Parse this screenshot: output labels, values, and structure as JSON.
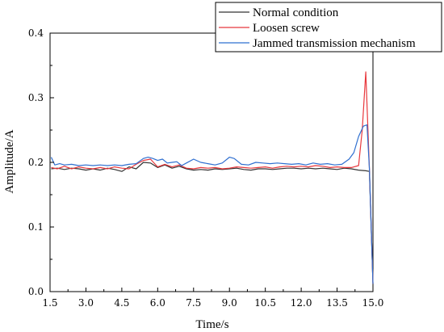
{
  "chart_data": {
    "type": "line",
    "xlabel": "Time/s",
    "ylabel": "Amplitude/A",
    "xlim": [
      1.5,
      15.0
    ],
    "ylim": [
      0.0,
      0.4
    ],
    "xticks": [
      "1.5",
      "3.0",
      "4.5",
      "6.0",
      "7.5",
      "9.0",
      "10.5",
      "12.0",
      "13.5",
      "15.0"
    ],
    "yticks": [
      "0.0",
      "0.1",
      "0.2",
      "0.3",
      "0.4"
    ],
    "xtick_values": [
      1.5,
      3.0,
      4.5,
      6.0,
      7.5,
      9.0,
      10.5,
      12.0,
      13.5,
      15.0
    ],
    "ytick_values": [
      0.0,
      0.1,
      0.2,
      0.3,
      0.4
    ],
    "grid": false,
    "legend_position": "top-right",
    "series": [
      {
        "name": "Normal condition",
        "color": "#333333",
        "x": [
          1.55,
          1.8,
          2.1,
          2.4,
          2.7,
          3.0,
          3.3,
          3.6,
          3.9,
          4.2,
          4.5,
          4.8,
          5.1,
          5.4,
          5.7,
          6.0,
          6.3,
          6.6,
          6.9,
          7.2,
          7.5,
          7.8,
          8.1,
          8.4,
          8.7,
          9.0,
          9.3,
          9.6,
          9.9,
          10.2,
          10.5,
          10.8,
          11.1,
          11.4,
          11.7,
          12.0,
          12.3,
          12.6,
          12.9,
          13.2,
          13.5,
          13.8,
          14.1,
          14.4,
          14.7,
          14.85,
          15.0
        ],
        "y": [
          0.19,
          0.191,
          0.189,
          0.191,
          0.19,
          0.188,
          0.19,
          0.188,
          0.191,
          0.189,
          0.186,
          0.193,
          0.19,
          0.2,
          0.199,
          0.192,
          0.196,
          0.191,
          0.194,
          0.19,
          0.188,
          0.189,
          0.188,
          0.19,
          0.189,
          0.19,
          0.191,
          0.189,
          0.188,
          0.19,
          0.19,
          0.189,
          0.19,
          0.191,
          0.191,
          0.19,
          0.191,
          0.19,
          0.191,
          0.19,
          0.189,
          0.191,
          0.19,
          0.188,
          0.187,
          0.186,
          0.012
        ]
      },
      {
        "name": "Loosen screw",
        "color": "#e8383d",
        "x": [
          1.55,
          1.8,
          2.1,
          2.4,
          2.7,
          3.0,
          3.3,
          3.6,
          3.9,
          4.2,
          4.5,
          4.8,
          5.1,
          5.4,
          5.7,
          6.0,
          6.3,
          6.6,
          6.9,
          7.2,
          7.5,
          7.8,
          8.1,
          8.4,
          8.7,
          9.0,
          9.3,
          9.6,
          9.9,
          10.2,
          10.5,
          10.8,
          11.1,
          11.4,
          11.7,
          12.0,
          12.3,
          12.6,
          12.9,
          13.2,
          13.5,
          13.8,
          14.1,
          14.4,
          14.55,
          14.7,
          14.85,
          15.0
        ],
        "y": [
          0.192,
          0.19,
          0.194,
          0.19,
          0.193,
          0.191,
          0.19,
          0.192,
          0.19,
          0.193,
          0.191,
          0.19,
          0.197,
          0.203,
          0.205,
          0.193,
          0.197,
          0.193,
          0.196,
          0.191,
          0.19,
          0.192,
          0.191,
          0.192,
          0.19,
          0.191,
          0.193,
          0.192,
          0.191,
          0.192,
          0.193,
          0.191,
          0.193,
          0.194,
          0.193,
          0.194,
          0.193,
          0.195,
          0.194,
          0.192,
          0.193,
          0.192,
          0.192,
          0.195,
          0.25,
          0.34,
          0.19,
          0.012
        ]
      },
      {
        "name": "Jammed transmission mechanism",
        "color": "#2f6fd0",
        "x": [
          1.55,
          1.7,
          1.9,
          2.1,
          2.4,
          2.7,
          3.0,
          3.3,
          3.6,
          3.9,
          4.2,
          4.5,
          4.8,
          5.1,
          5.4,
          5.6,
          5.8,
          6.0,
          6.2,
          6.4,
          6.6,
          6.8,
          7.0,
          7.2,
          7.5,
          7.8,
          8.1,
          8.4,
          8.7,
          9.0,
          9.2,
          9.5,
          9.8,
          10.1,
          10.4,
          10.7,
          11.0,
          11.3,
          11.6,
          11.9,
          12.2,
          12.5,
          12.8,
          13.1,
          13.4,
          13.7,
          14.0,
          14.2,
          14.4,
          14.6,
          14.75,
          14.85,
          15.0
        ],
        "y": [
          0.208,
          0.196,
          0.198,
          0.196,
          0.197,
          0.195,
          0.196,
          0.195,
          0.196,
          0.195,
          0.196,
          0.195,
          0.197,
          0.198,
          0.206,
          0.208,
          0.206,
          0.203,
          0.205,
          0.199,
          0.2,
          0.201,
          0.195,
          0.199,
          0.205,
          0.2,
          0.198,
          0.196,
          0.199,
          0.208,
          0.206,
          0.197,
          0.196,
          0.2,
          0.199,
          0.198,
          0.199,
          0.198,
          0.197,
          0.198,
          0.196,
          0.199,
          0.197,
          0.198,
          0.196,
          0.197,
          0.205,
          0.215,
          0.24,
          0.256,
          0.258,
          0.19,
          0.012
        ]
      }
    ]
  }
}
